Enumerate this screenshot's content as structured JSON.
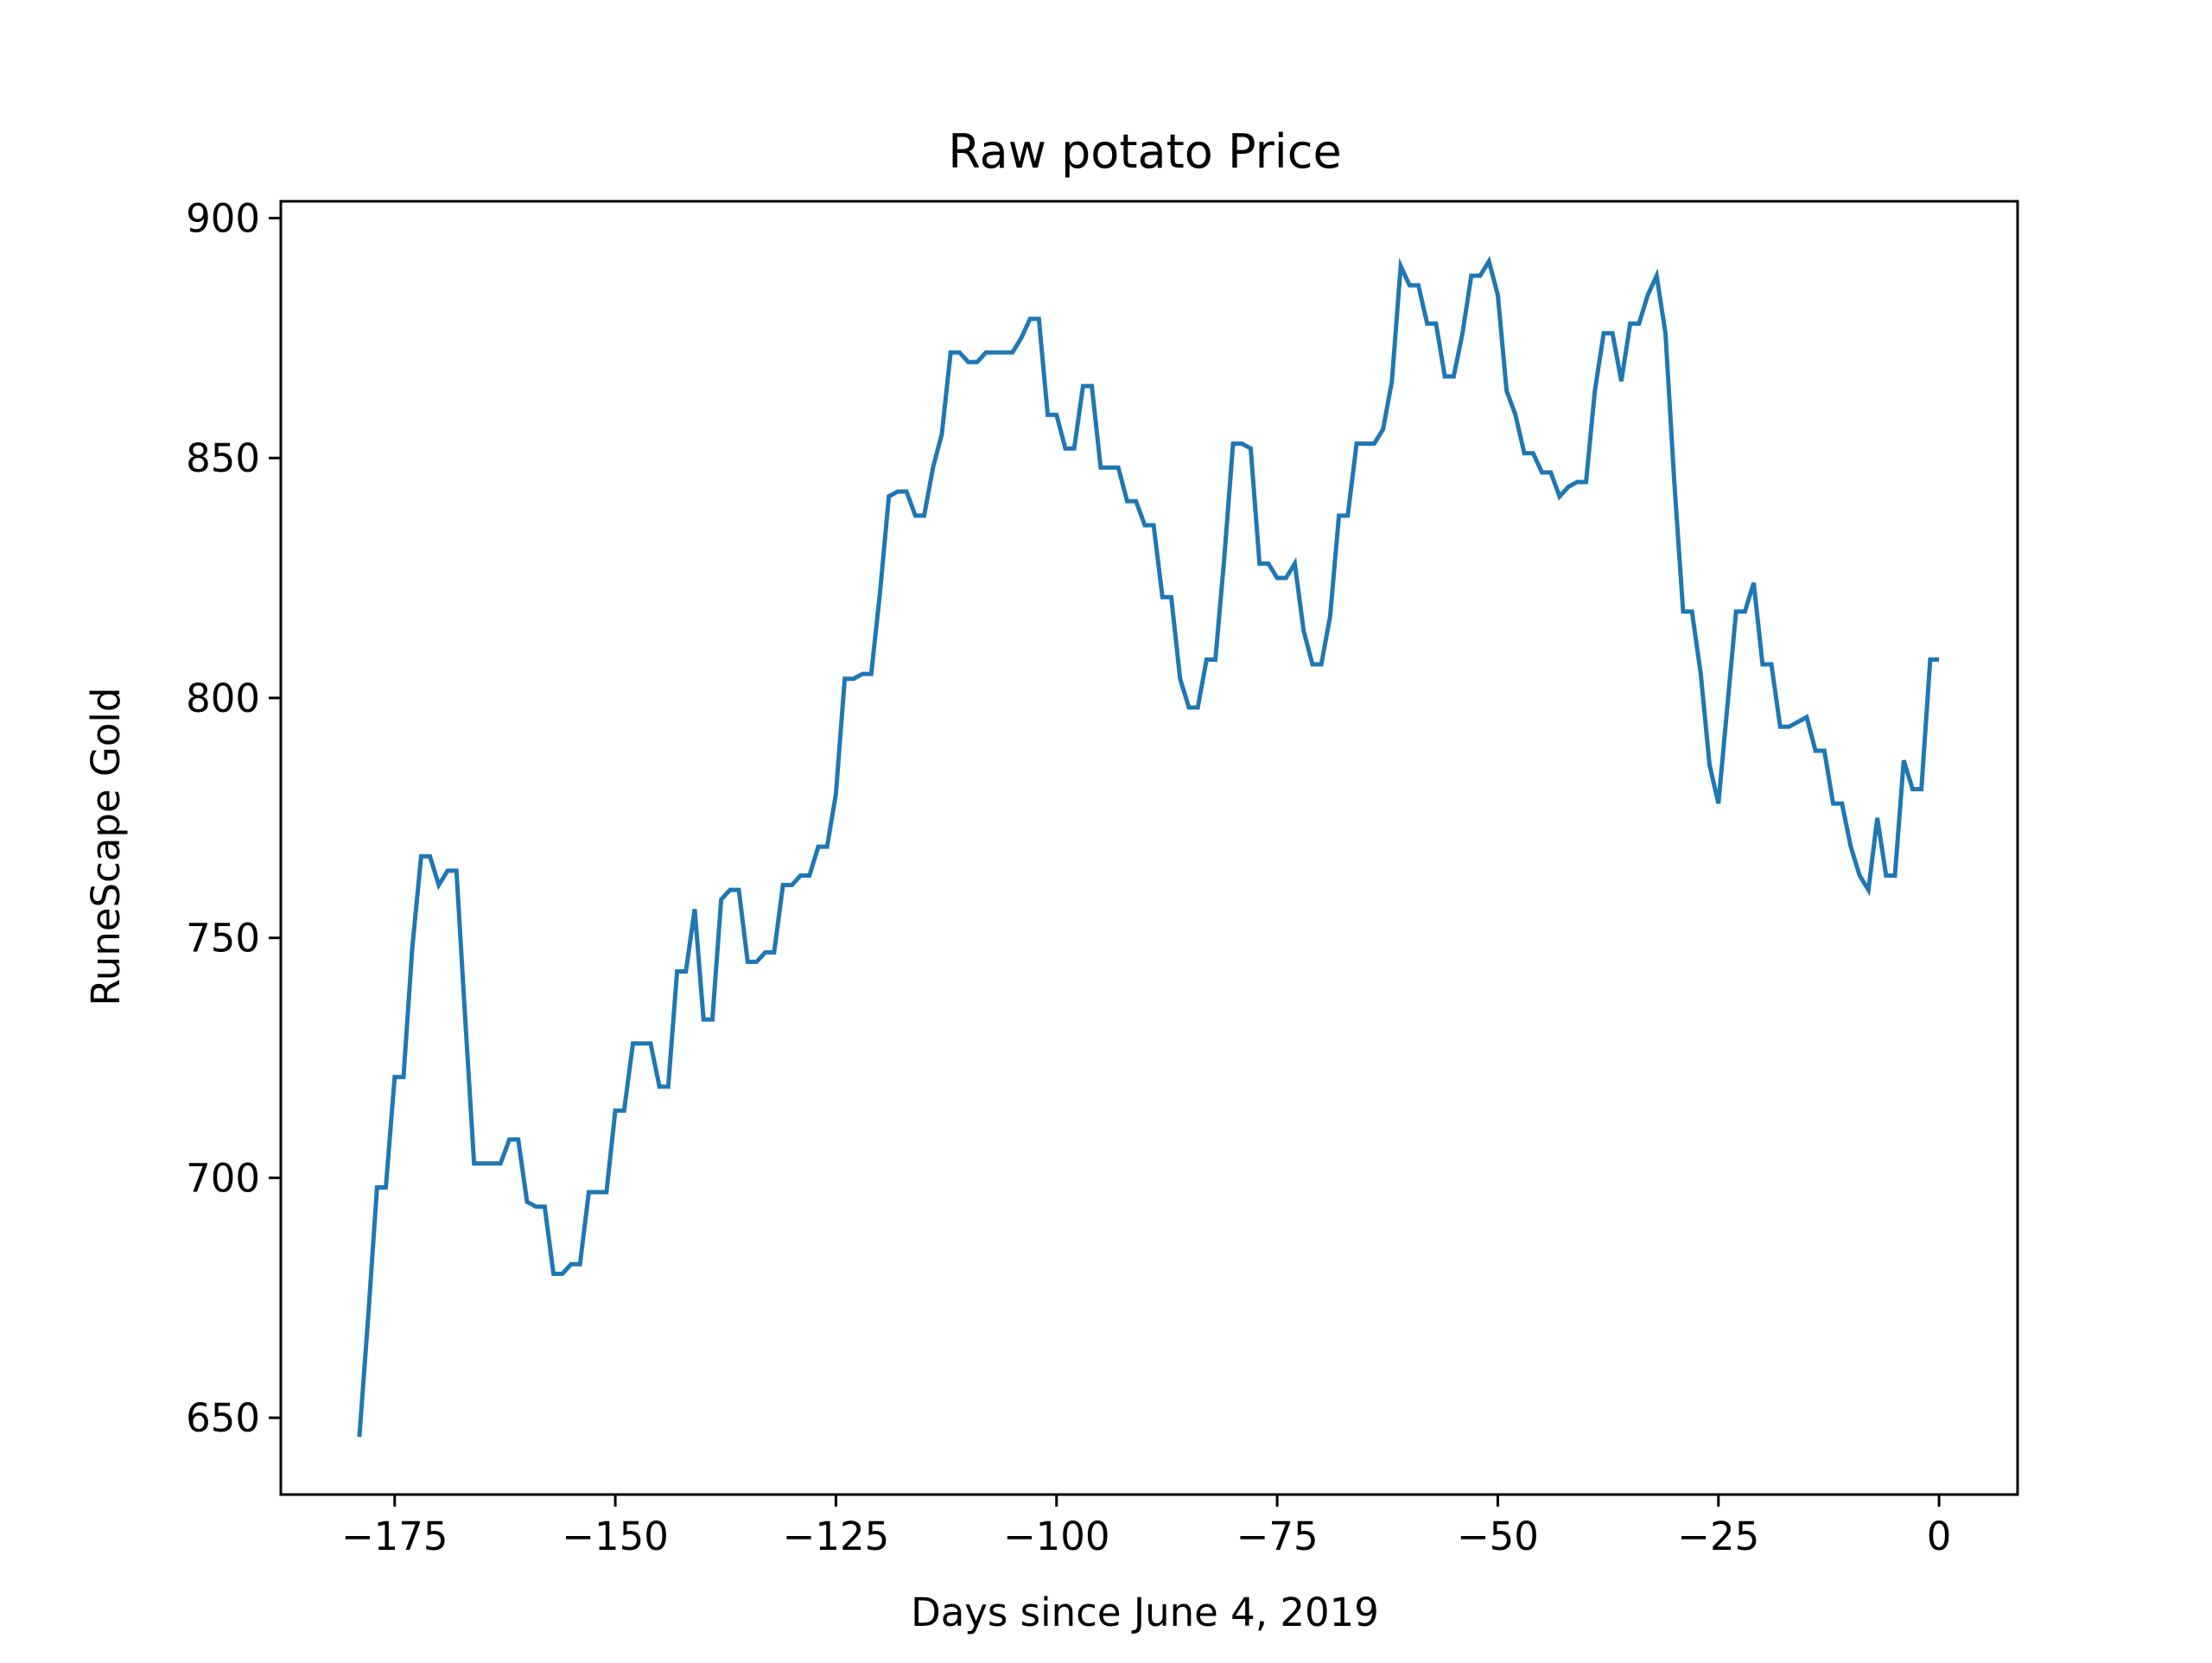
{
  "chart_data": {
    "type": "line",
    "title": "Raw potato Price",
    "xlabel": "Days since June 4, 2019",
    "ylabel": "RuneScape Gold",
    "xlim": [
      -187.9,
      8.9
    ],
    "ylim": [
      634,
      903.5
    ],
    "xticks": [
      -175,
      -150,
      -125,
      -100,
      -75,
      -50,
      -25,
      0
    ],
    "xtick_labels": [
      "−175",
      "−150",
      "−125",
      "−100",
      "−75",
      "−50",
      "−25",
      "0"
    ],
    "yticks": [
      650,
      700,
      750,
      800,
      850,
      900
    ],
    "ytick_labels": [
      "650",
      "700",
      "750",
      "800",
      "850",
      "900"
    ],
    "grid": false,
    "legend": null,
    "colors": {
      "line": "#1f77b4"
    },
    "series": [
      {
        "x": [
          -179,
          -178,
          -177,
          -176,
          -175,
          -174,
          -173,
          -172,
          -171,
          -170,
          -169,
          -168,
          -167,
          -166,
          -165,
          -164,
          -163,
          -162,
          -161,
          -160,
          -159,
          -158,
          -157,
          -156,
          -155,
          -154,
          -153,
          -152,
          -151,
          -150,
          -149,
          -148,
          -147,
          -146,
          -145,
          -144,
          -143,
          -142,
          -141,
          -140,
          -139,
          -138,
          -137,
          -136,
          -135,
          -134,
          -133,
          -132,
          -131,
          -130,
          -129,
          -128,
          -127,
          -126,
          -125,
          -124,
          -123,
          -122,
          -121,
          -120,
          -119,
          -118,
          -117,
          -116,
          -115,
          -114,
          -113,
          -112,
          -111,
          -110,
          -109,
          -108,
          -107,
          -106,
          -105,
          -104,
          -103,
          -102,
          -101,
          -100,
          -99,
          -98,
          -97,
          -96,
          -95,
          -94,
          -93,
          -92,
          -91,
          -90,
          -89,
          -88,
          -87,
          -86,
          -85,
          -84,
          -83,
          -82,
          -81,
          -80,
          -79,
          -78,
          -77,
          -76,
          -75,
          -74,
          -73,
          -72,
          -71,
          -70,
          -69,
          -68,
          -67,
          -66,
          -65,
          -64,
          -63,
          -62,
          -61,
          -60,
          -59,
          -58,
          -57,
          -56,
          -55,
          -54,
          -53,
          -52,
          -51,
          -50,
          -49,
          -48,
          -47,
          -46,
          -45,
          -44,
          -43,
          -42,
          -41,
          -40,
          -39,
          -38,
          -37,
          -36,
          -35,
          -34,
          -33,
          -32,
          -31,
          -30,
          -29,
          -28,
          -27,
          -26,
          -25,
          -24,
          -23,
          -22,
          -21,
          -20,
          -19,
          -18,
          -17,
          -16,
          -15,
          -14,
          -13,
          -12,
          -11,
          -10,
          -9,
          -8,
          -7,
          -6,
          -5,
          -4,
          -3,
          -2,
          -1,
          0
        ],
        "y": [
          646,
          671,
          698,
          698,
          721,
          721,
          748,
          767,
          767,
          761,
          764,
          764,
          733,
          703,
          703,
          703,
          703,
          708,
          708,
          695,
          694,
          694,
          680,
          680,
          682,
          682,
          697,
          697,
          697,
          714,
          714,
          728,
          728,
          728,
          719,
          719,
          743,
          743,
          756,
          733,
          733,
          758,
          760,
          760,
          745,
          745,
          747,
          747,
          761,
          761,
          763,
          763,
          769,
          769,
          780,
          804,
          804,
          805,
          805,
          822,
          842,
          843,
          843,
          838,
          838,
          848,
          855,
          872,
          872,
          870,
          870,
          872,
          872,
          872,
          872,
          875,
          879,
          879,
          859,
          859,
          852,
          852,
          865,
          865,
          848,
          848,
          848,
          841,
          841,
          836,
          836,
          821,
          821,
          804,
          798,
          798,
          808,
          808,
          829,
          853,
          853,
          852,
          828,
          828,
          825,
          825,
          828,
          814,
          807,
          807,
          817,
          838,
          838,
          853,
          853,
          853,
          856,
          866,
          890,
          886,
          886,
          878,
          878,
          867,
          867,
          876,
          888,
          888,
          891,
          884,
          864,
          859,
          851,
          851,
          847,
          847,
          842,
          844,
          845,
          845,
          864,
          876,
          876,
          866,
          878,
          878,
          884,
          888,
          876,
          845,
          818,
          818,
          805,
          786,
          778,
          798,
          818,
          818,
          824,
          807,
          807,
          794,
          794,
          795,
          796,
          789,
          789,
          778,
          778,
          769,
          763,
          760,
          775,
          763,
          763,
          787,
          781,
          781,
          808,
          808
        ]
      }
    ]
  }
}
